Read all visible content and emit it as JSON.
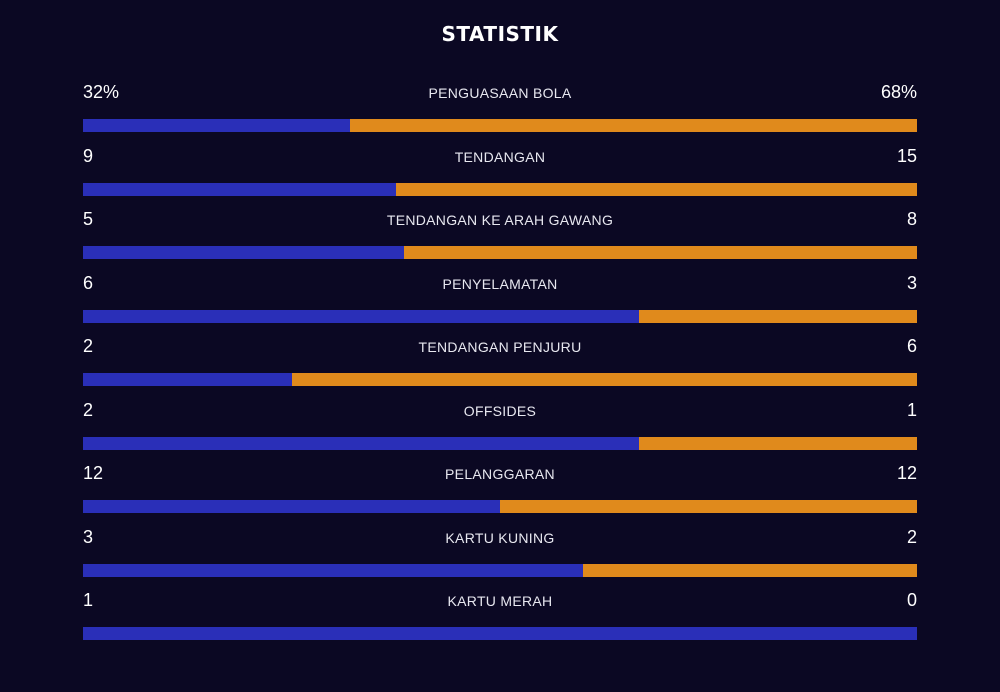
{
  "title": "STATISTIK",
  "colors": {
    "background": "#0b0823",
    "home_bar": "#2a2fb8",
    "away_bar": "#e08a1c"
  },
  "stats": [
    {
      "label": "PENGUASAAN BOLA",
      "home": "32%",
      "away": "68%",
      "home_share": 0.32
    },
    {
      "label": "TENDANGAN",
      "home": "9",
      "away": "15",
      "home_share": 0.375
    },
    {
      "label": "TENDANGAN KE ARAH GAWANG",
      "home": "5",
      "away": "8",
      "home_share": 0.3846
    },
    {
      "label": "PENYELAMATAN",
      "home": "6",
      "away": "3",
      "home_share": 0.6667
    },
    {
      "label": "TENDANGAN PENJURU",
      "home": "2",
      "away": "6",
      "home_share": 0.25
    },
    {
      "label": "OFFSIDES",
      "home": "2",
      "away": "1",
      "home_share": 0.6667
    },
    {
      "label": "PELANGGARAN",
      "home": "12",
      "away": "12",
      "home_share": 0.5
    },
    {
      "label": "KARTU KUNING",
      "home": "3",
      "away": "2",
      "home_share": 0.6
    },
    {
      "label": "KARTU MERAH",
      "home": "1",
      "away": "0",
      "home_share": 1.0
    }
  ]
}
